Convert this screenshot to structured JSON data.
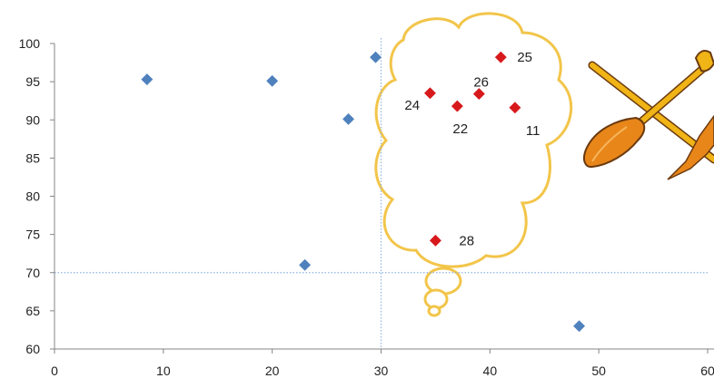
{
  "chart_data": {
    "type": "scatter",
    "title": "",
    "xlabel": "",
    "ylabel": "",
    "xlim": [
      0,
      60
    ],
    "ylim": [
      60,
      100
    ],
    "xticks": [
      0,
      10,
      20,
      30,
      40,
      50,
      60
    ],
    "yticks": [
      60,
      65,
      70,
      75,
      80,
      85,
      90,
      95,
      100
    ],
    "grid": false,
    "legend": "none",
    "reference_lines": {
      "x": 30,
      "y": 70,
      "color": "#8eb4e3",
      "style": "dotted"
    },
    "series": [
      {
        "marker": "diamond",
        "color": "#4f81bd",
        "points": [
          {
            "x": 8.5,
            "y": 95.3
          },
          {
            "x": 20.0,
            "y": 95.1
          },
          {
            "x": 29.5,
            "y": 98.2
          },
          {
            "x": 27.0,
            "y": 90.1
          },
          {
            "x": 23.0,
            "y": 71.0
          },
          {
            "x": 48.2,
            "y": 63.0
          }
        ]
      },
      {
        "marker": "diamond",
        "color": "#d7191c",
        "points": [
          {
            "x": 41.0,
            "y": 98.2,
            "label": "25"
          },
          {
            "x": 34.5,
            "y": 93.5,
            "label": "24"
          },
          {
            "x": 39.0,
            "y": 93.4,
            "label": "26"
          },
          {
            "x": 37.0,
            "y": 91.8,
            "label": "22"
          },
          {
            "x": 42.3,
            "y": 91.6,
            "label": "11"
          },
          {
            "x": 35.0,
            "y": 74.2,
            "label": "28"
          }
        ]
      }
    ]
  },
  "decorations": {
    "thought_cloud_color": "#f2c54a",
    "shovel_handle_color": "#f0b416",
    "shovel_blade_color": "#e8861a",
    "shovel_outline_color": "#6b3a0f",
    "icon": "crossed-shovel-pickaxe-icon"
  }
}
